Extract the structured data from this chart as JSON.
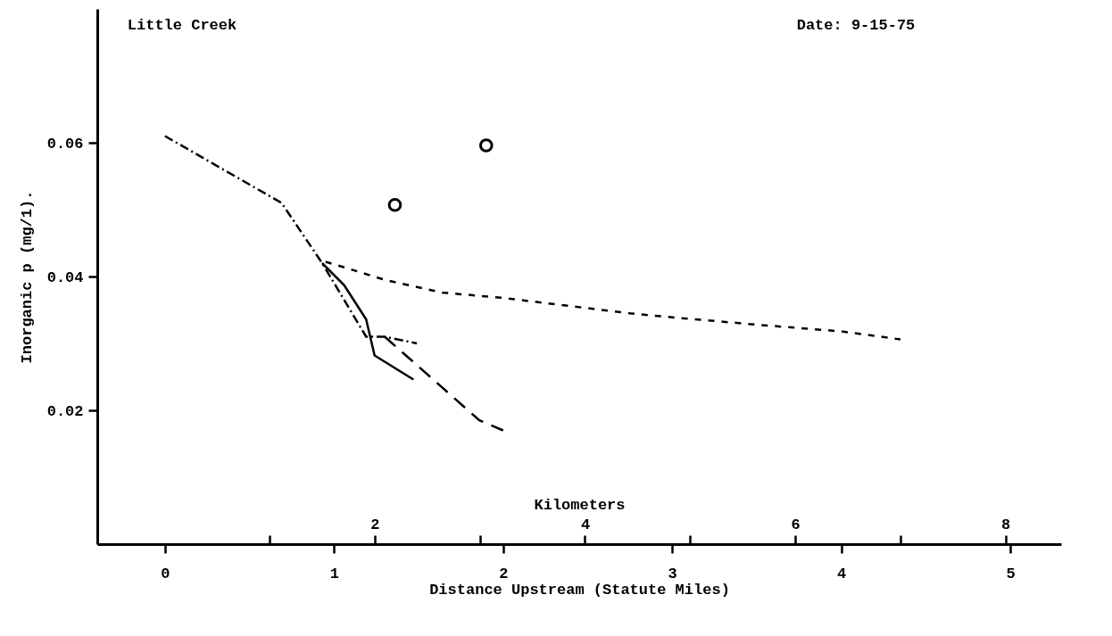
{
  "chart_data": {
    "type": "line",
    "xlabel": "Distance Upstream (Statute Miles)",
    "ylabel": "Inorganic p  (mg/1).",
    "x2label": "Kilometers",
    "annotations": [
      "Little Creek",
      "Date:  9-15-75"
    ],
    "xlim": [
      -0.4,
      5.3
    ],
    "xticks": [
      0,
      1,
      2,
      3,
      4,
      5
    ],
    "x2lim": [
      -0.64,
      8.53
    ],
    "x2ticks": [
      {
        "value": 1,
        "label": null
      },
      2,
      {
        "value": 3,
        "label": null
      },
      4,
      {
        "value": 5,
        "label": null
      },
      6,
      {
        "value": 7,
        "label": null
      },
      8
    ],
    "ylim": [
      0,
      0.08
    ],
    "yticks": [
      0.02,
      0.04,
      0.06
    ],
    "series": [
      {
        "color": "#000000",
        "line_style": "dashdot",
        "x": [
          0,
          0.69,
          0.93,
          1.19,
          1.3,
          1.49
        ],
        "values": [
          0.061,
          0.051,
          0.042,
          0.031,
          0.031,
          0.03
        ]
      },
      {
        "color": "#000000",
        "line_style": "dashed",
        "x": [
          1.3,
          1.86,
          2.0
        ],
        "values": [
          0.031,
          0.0185,
          0.017
        ]
      },
      {
        "color": "#000000",
        "line_style": "solid",
        "x": [
          0.93,
          1.06,
          1.19,
          1.24,
          1.47
        ],
        "values": [
          0.042,
          0.0387,
          0.0336,
          0.0282,
          0.0246
        ]
      },
      {
        "color": "#000000",
        "line_style": "dotted",
        "x": [
          0.95,
          1.07,
          1.3,
          1.64,
          2.0,
          2.75,
          3.0,
          3.5,
          4.0,
          4.35
        ],
        "values": [
          0.0422,
          0.0413,
          0.0395,
          0.0376,
          0.0368,
          0.0345,
          0.0339,
          0.0328,
          0.0318,
          0.0306
        ]
      },
      {
        "type": "scatter",
        "color": "#000000",
        "marker": "circle",
        "x": [
          1.36
        ],
        "values": [
          0.0507
        ]
      },
      {
        "type": "scatter",
        "color": "#000000",
        "marker": "circle",
        "x": [
          1.9
        ],
        "values": [
          0.0596
        ]
      }
    ]
  }
}
